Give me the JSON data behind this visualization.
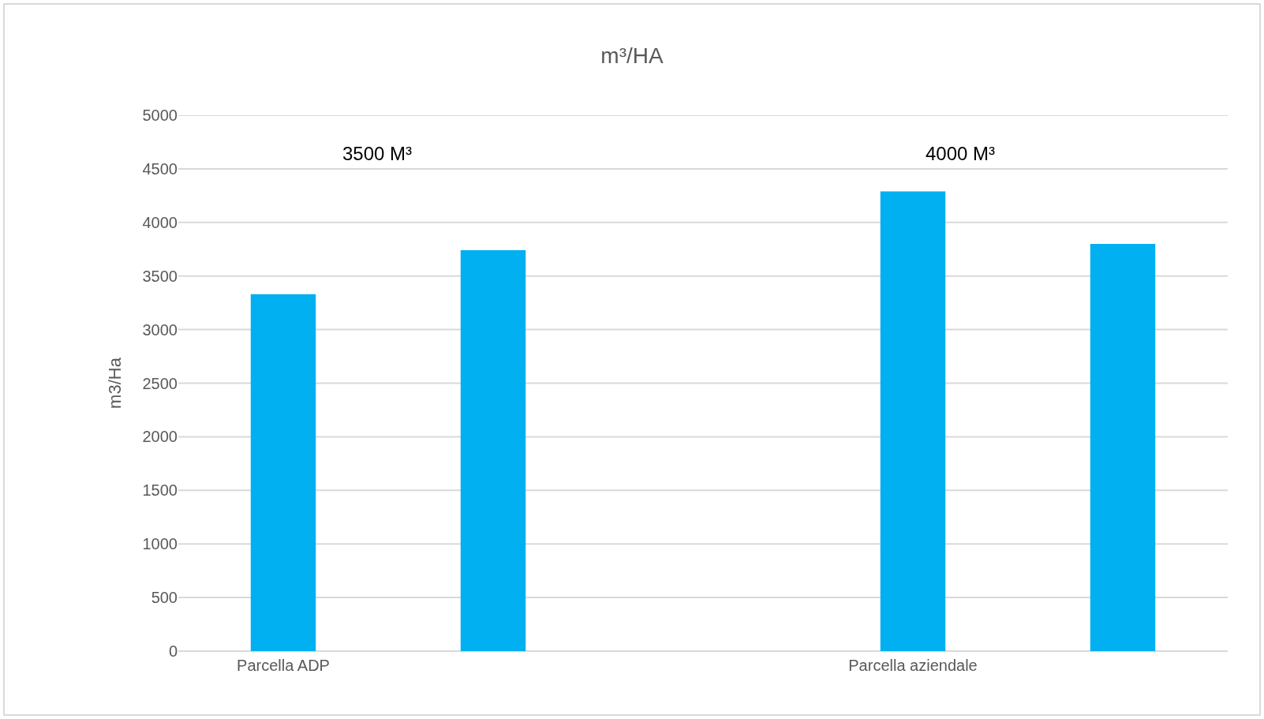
{
  "chart_data": {
    "type": "bar",
    "title": "m³/HA",
    "ylabel": "m3/Ha",
    "categories": [
      "Parcella ADP",
      null,
      null,
      "Parcella aziendale",
      null
    ],
    "values": [
      3330,
      3740,
      null,
      4290,
      3800
    ],
    "color": "#00b0f0",
    "ylim": [
      0,
      5000
    ],
    "yticks": [
      0,
      500,
      1000,
      1500,
      2000,
      2500,
      3000,
      3500,
      4000,
      4500,
      5000
    ],
    "grid": "y",
    "annotations": [
      "3500 M³",
      "4000 M³"
    ]
  }
}
